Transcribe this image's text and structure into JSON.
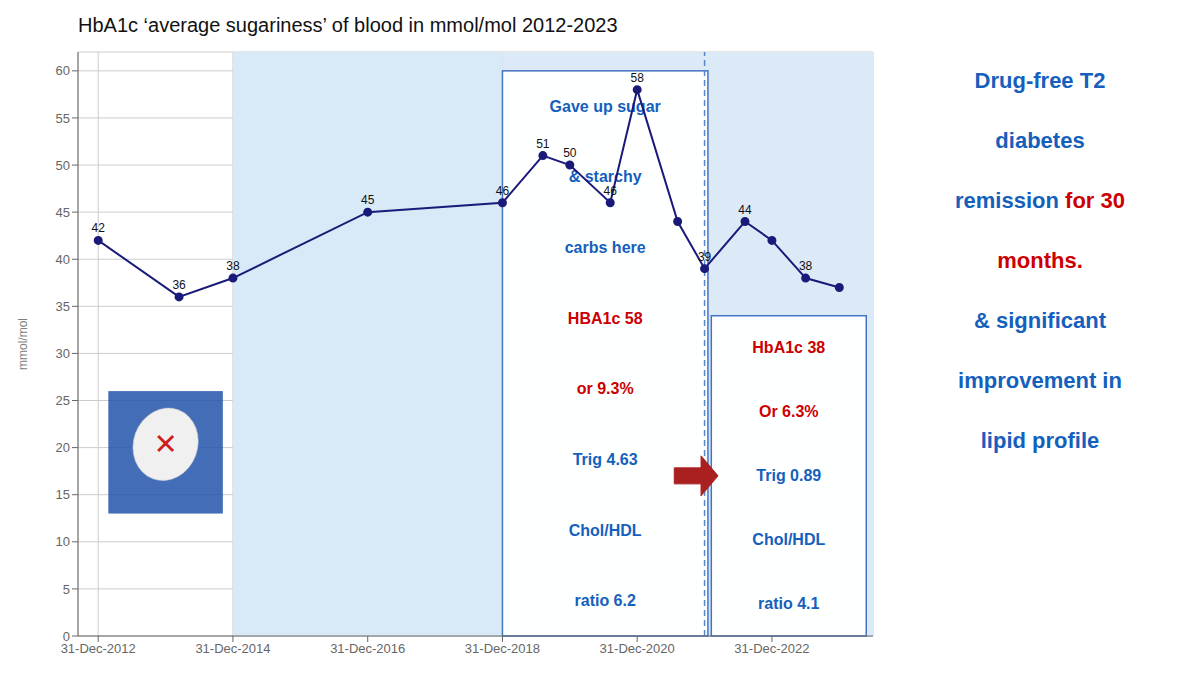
{
  "chart_data": {
    "type": "line",
    "title": "HbA1c ‘average sugariness’ of blood in mmol/mol 2012-2023",
    "y_label": "mmol/mol",
    "x": [
      0.0,
      1.2,
      2.0,
      4.0,
      6.0,
      6.6,
      7.0,
      7.6,
      8.0,
      8.6,
      9.0,
      9.6,
      10.0,
      10.5,
      11.0
    ],
    "values": [
      42,
      36,
      38,
      45,
      46,
      51,
      50,
      46,
      58,
      44,
      39,
      44,
      42,
      38,
      37
    ],
    "value_labels": [
      "42",
      "36",
      "38",
      "45",
      "46",
      "51",
      "50",
      "46",
      "58",
      null,
      "39",
      "44",
      null,
      "38",
      null
    ],
    "data_labels": true,
    "color": "#1a1a7a",
    "marker": "circle",
    "xlim": [
      -0.3,
      11.5
    ],
    "xticks": [
      {
        "value": 0,
        "label": "31-Dec-2012"
      },
      {
        "value": 2,
        "label": "31-Dec-2014"
      },
      {
        "value": 4,
        "label": "31-Dec-2016"
      },
      {
        "value": 6,
        "label": "31-Dec-2018"
      },
      {
        "value": 8,
        "label": "31-Dec-2020"
      },
      {
        "value": 10,
        "label": "31-Dec-2022"
      }
    ],
    "ylim": [
      0,
      62
    ],
    "yticks": [
      0,
      5,
      10,
      15,
      20,
      25,
      30,
      35,
      40,
      45,
      50,
      55,
      60
    ],
    "grid": true,
    "shaded_regions": [
      {
        "x": [
          2.0,
          6.0
        ],
        "color": "#d8eaf7"
      },
      {
        "x": [
          6.0,
          11.5
        ],
        "color": "#dceaf7"
      }
    ],
    "reference_lines": [
      {
        "x": 9.0,
        "color": "#5588cc",
        "line_style": "dashed"
      }
    ],
    "text_boxes": [
      {
        "x": [
          6.0,
          9.05
        ],
        "y": [
          0,
          60
        ],
        "border_color": "#4472c4",
        "lines": [
          {
            "text": "Gave up sugar",
            "color": "#1560bd"
          },
          {
            "text": "& starchy",
            "color": "#1560bd"
          },
          {
            "text": "carbs here",
            "color": "#1560bd"
          },
          {
            "text": "HBA1c 58",
            "color": "#cc0000"
          },
          {
            "text": "or 9.3%",
            "color": "#cc0000"
          },
          {
            "text": "Trig 4.63",
            "color": "#1560bd"
          },
          {
            "text": "Chol/HDL",
            "color": "#1560bd"
          },
          {
            "text": "ratio 6.2",
            "color": "#1560bd"
          }
        ]
      },
      {
        "x": [
          9.1,
          11.4
        ],
        "y": [
          0,
          34
        ],
        "border_color": "#4472c4",
        "lines": [
          {
            "text": "HbA1c 38",
            "color": "#cc0000"
          },
          {
            "text": "Or 6.3%",
            "color": "#cc0000"
          },
          {
            "text": "Trig 0.89",
            "color": "#1560bd"
          },
          {
            "text": "Chol/HDL",
            "color": "#1560bd"
          },
          {
            "text": "ratio 4.1",
            "color": "#1560bd"
          }
        ]
      }
    ],
    "arrow": {
      "x": [
        8.55,
        9.2
      ],
      "y": 17,
      "color": "#aa2020"
    },
    "image": {
      "x": [
        0.15,
        1.85
      ],
      "y": [
        13,
        26
      ],
      "color": "#2255aa",
      "text": "✕",
      "text_color": "#cc0000"
    },
    "side_text": [
      [
        {
          "text": "Drug-free T2",
          "color": "#1560bd"
        }
      ],
      [
        {
          "text": "diabetes",
          "color": "#1560bd"
        }
      ],
      [
        {
          "text": "remission ",
          "color": "#1560bd"
        },
        {
          "text": "for 30",
          "color": "#cc0000"
        }
      ],
      [
        {
          "text": "months.",
          "color": "#cc0000"
        }
      ],
      [
        {
          "text": "& significant",
          "color": "#1560bd"
        }
      ],
      [
        {
          "text": "improvement in",
          "color": "#1560bd"
        }
      ],
      [
        {
          "text": "lipid profile",
          "color": "#1560bd"
        }
      ]
    ]
  }
}
